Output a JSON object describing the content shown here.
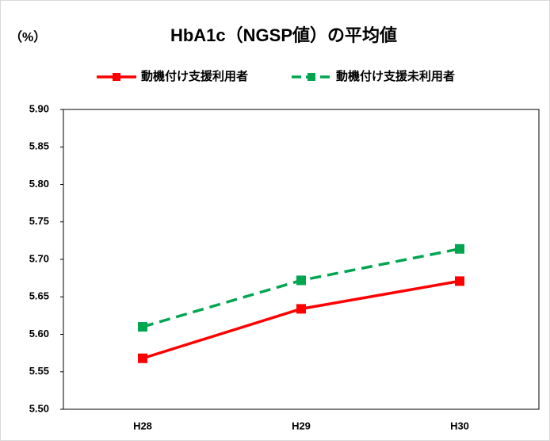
{
  "chart_data": {
    "type": "line",
    "title": "HbA1c（NGSP値）の平均値",
    "unit_label": "（%）",
    "categories": [
      "H28",
      "H29",
      "H30"
    ],
    "series": [
      {
        "name": "動機付け支援利用者",
        "color": "#ff0000",
        "dashed": false,
        "values": [
          5.568,
          5.634,
          5.671
        ]
      },
      {
        "name": "動機付け支援未利用者",
        "color": "#00a550",
        "dashed": true,
        "values": [
          5.61,
          5.672,
          5.714
        ]
      }
    ],
    "ylim": [
      5.5,
      5.9
    ],
    "yticks": [
      {
        "value": 5.5,
        "label": "5.50"
      },
      {
        "value": 5.55,
        "label": "5.55"
      },
      {
        "value": 5.6,
        "label": "5.60"
      },
      {
        "value": 5.65,
        "label": "5.65"
      },
      {
        "value": 5.7,
        "label": "5.70"
      },
      {
        "value": 5.75,
        "label": "5.75"
      },
      {
        "value": 5.8,
        "label": "5.80"
      },
      {
        "value": 5.85,
        "label": "5.85"
      },
      {
        "value": 5.9,
        "label": "5.90"
      }
    ],
    "legend": "top",
    "grid": false
  }
}
